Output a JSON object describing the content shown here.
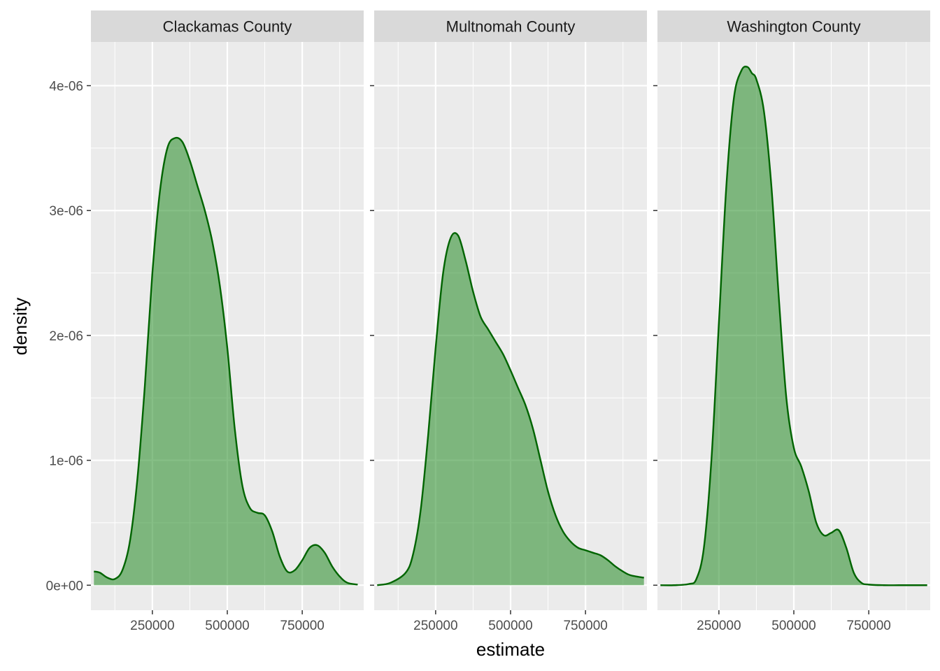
{
  "chart_data": {
    "type": "area",
    "xlabel": "estimate",
    "ylabel": "density",
    "xlim": [
      45000,
      955000
    ],
    "ylim": [
      -2e-07,
      4.35e-06
    ],
    "x_ticks": [
      250000,
      500000,
      750000
    ],
    "x_tick_labels": [
      "250000",
      "500000",
      "750000"
    ],
    "y_ticks": [
      0,
      1e-06,
      2e-06,
      3e-06,
      4e-06
    ],
    "y_tick_labels": [
      "0e+00",
      "1e-06",
      "2e-06",
      "3e-06",
      "4e-06"
    ],
    "grid": true,
    "legend": "none",
    "colors": {
      "fill": "#228B22",
      "fill_opacity": 0.55,
      "line": "#006400",
      "panel_bg": "#EBEBEB",
      "strip_bg": "#D9D9D9",
      "grid": "#FFFFFF"
    },
    "facets": [
      {
        "label": "Clackamas County",
        "x": [
          55000,
          75000,
          100000,
          125000,
          150000,
          175000,
          200000,
          225000,
          250000,
          275000,
          300000,
          325000,
          350000,
          375000,
          400000,
          425000,
          450000,
          475000,
          500000,
          525000,
          550000,
          575000,
          600000,
          625000,
          650000,
          675000,
          700000,
          725000,
          750000,
          775000,
          800000,
          825000,
          850000,
          875000,
          900000,
          935000
        ],
        "y": [
          1.1e-07,
          1e-07,
          6e-08,
          5e-08,
          1.2e-07,
          3.5e-07,
          8.5e-07,
          1.6e-06,
          2.5e-06,
          3.15e-06,
          3.5e-06,
          3.58e-06,
          3.55e-06,
          3.4e-06,
          3.2e-06,
          3e-06,
          2.75e-06,
          2.4e-06,
          1.9e-06,
          1.25e-06,
          8e-07,
          6.2e-07,
          5.8e-07,
          5.6e-07,
          4.3e-07,
          2.3e-07,
          1.1e-07,
          1.2e-07,
          2e-07,
          3e-07,
          3.2e-07,
          2.6e-07,
          1.5e-07,
          7e-08,
          2e-08,
          5e-09
        ]
      },
      {
        "label": "Multnomah County",
        "x": [
          55000,
          100000,
          150000,
          175000,
          200000,
          225000,
          250000,
          275000,
          300000,
          325000,
          350000,
          375000,
          400000,
          425000,
          450000,
          475000,
          500000,
          525000,
          550000,
          575000,
          600000,
          625000,
          650000,
          675000,
          700000,
          725000,
          750000,
          775000,
          800000,
          825000,
          850000,
          875000,
          900000,
          945000
        ],
        "y": [
          0,
          2e-08,
          1e-07,
          2.5e-07,
          6e-07,
          1.2e-06,
          1.9e-06,
          2.5e-06,
          2.78e-06,
          2.8e-06,
          2.6e-06,
          2.35e-06,
          2.15e-06,
          2.05e-06,
          1.95e-06,
          1.85e-06,
          1.72e-06,
          1.58e-06,
          1.44e-06,
          1.25e-06,
          1e-06,
          7.5e-07,
          5.6e-07,
          4.3e-07,
          3.5e-07,
          3e-07,
          2.8e-07,
          2.6e-07,
          2.4e-07,
          2e-07,
          1.5e-07,
          1.1e-07,
          8e-08,
          6e-08
        ]
      },
      {
        "label": "Washington County",
        "x": [
          55000,
          100000,
          150000,
          175000,
          200000,
          225000,
          250000,
          275000,
          300000,
          325000,
          345000,
          360000,
          375000,
          400000,
          425000,
          450000,
          475000,
          500000,
          525000,
          550000,
          575000,
          600000,
          625000,
          650000,
          675000,
          700000,
          725000,
          750000,
          800000,
          850000,
          900000,
          945000
        ],
        "y": [
          0,
          0,
          1e-08,
          5e-08,
          3e-07,
          1e-06,
          2.1e-06,
          3.2e-06,
          3.9e-06,
          4.12e-06,
          4.15e-06,
          4.1e-06,
          4.05e-06,
          3.8e-06,
          3.2e-06,
          2.3e-06,
          1.5e-06,
          1.1e-06,
          9.5e-07,
          7.5e-07,
          5e-07,
          4e-07,
          4.2e-07,
          4.4e-07,
          3e-07,
          1e-07,
          2e-08,
          5e-09,
          0,
          0,
          0,
          0
        ]
      }
    ]
  }
}
